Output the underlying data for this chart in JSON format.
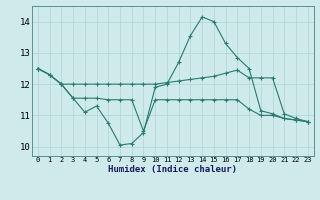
{
  "xlabel": "Humidex (Indice chaleur)",
  "bg_color": "#ceeaea",
  "line_color": "#2a7a6f",
  "grid_color": "#b0d4d4",
  "xlim": [
    -0.5,
    23.5
  ],
  "ylim": [
    9.7,
    14.5
  ],
  "yticks": [
    10,
    11,
    12,
    13,
    14
  ],
  "xticks": [
    0,
    1,
    2,
    3,
    4,
    5,
    6,
    7,
    8,
    9,
    10,
    11,
    12,
    13,
    14,
    15,
    16,
    17,
    18,
    19,
    20,
    21,
    22,
    23
  ],
  "series": [
    [
      12.5,
      12.3,
      12.0,
      11.55,
      11.1,
      11.3,
      10.75,
      10.05,
      10.1,
      10.45,
      11.9,
      12.0,
      12.7,
      13.55,
      14.15,
      14.0,
      13.3,
      12.85,
      12.5,
      11.15,
      11.05,
      10.9,
      10.85,
      10.8
    ],
    [
      12.5,
      12.3,
      12.0,
      12.0,
      12.0,
      12.0,
      12.0,
      12.0,
      12.0,
      12.0,
      12.0,
      12.05,
      12.1,
      12.15,
      12.2,
      12.25,
      12.35,
      12.45,
      12.2,
      12.2,
      12.2,
      11.05,
      10.9,
      10.8
    ],
    [
      12.5,
      12.3,
      12.0,
      11.55,
      11.55,
      11.55,
      11.5,
      11.5,
      11.5,
      10.5,
      11.5,
      11.5,
      11.5,
      11.5,
      11.5,
      11.5,
      11.5,
      11.5,
      11.2,
      11.0,
      11.0,
      10.9,
      10.85,
      10.8
    ]
  ]
}
